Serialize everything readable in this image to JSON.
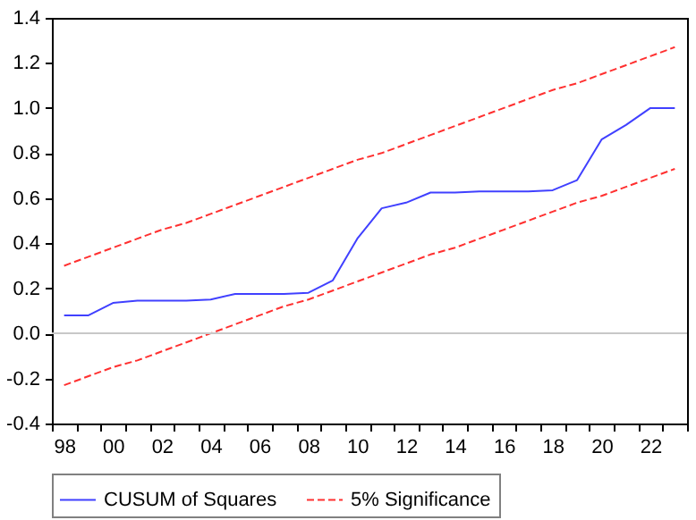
{
  "chart_data": {
    "type": "line",
    "categories": [
      "98",
      null,
      "00",
      null,
      "02",
      null,
      "04",
      null,
      "06",
      null,
      "08",
      null,
      "10",
      null,
      "12",
      null,
      "14",
      null,
      "16",
      null,
      "18",
      null,
      "20",
      null,
      "22",
      null
    ],
    "series": [
      {
        "name": "CUSUM of Squares",
        "color": "#4040ff",
        "line_style": "solid",
        "values": [
          0.08,
          0.08,
          0.135,
          0.145,
          0.145,
          0.145,
          0.15,
          0.175,
          0.175,
          0.175,
          0.18,
          0.235,
          0.42,
          0.555,
          0.58,
          0.625,
          0.625,
          0.63,
          0.63,
          0.63,
          0.635,
          0.68,
          0.86,
          0.925,
          1.0,
          1.0
        ]
      },
      {
        "name": "5% Significance",
        "color": "#ff3030",
        "line_style": "dashed",
        "values": [
          0.3,
          0.34,
          0.38,
          0.42,
          0.46,
          0.49,
          0.53,
          0.57,
          0.61,
          0.65,
          0.69,
          0.73,
          0.77,
          0.8,
          0.84,
          0.88,
          0.92,
          0.96,
          1.0,
          1.04,
          1.08,
          1.11,
          1.15,
          1.19,
          1.23,
          1.27
        ]
      },
      {
        "color": "#ff3030",
        "line_style": "dashed",
        "values": [
          -0.23,
          -0.19,
          -0.15,
          -0.12,
          -0.08,
          -0.04,
          0.0,
          0.04,
          0.08,
          0.12,
          0.15,
          0.19,
          0.23,
          0.27,
          0.31,
          0.35,
          0.38,
          0.42,
          0.46,
          0.5,
          0.54,
          0.58,
          0.61,
          0.65,
          0.69,
          0.73
        ]
      }
    ],
    "ylim": [
      -0.4,
      1.4
    ],
    "yticks": [
      -0.4,
      -0.2,
      {
        "value": 0,
        "label": "0.0"
      },
      0.2,
      0.4,
      0.6,
      0.8,
      {
        "value": 1,
        "label": "1.0"
      },
      1.2,
      1.4
    ],
    "ref_lines": [
      {
        "axis": "y",
        "value": 0,
        "color": "#c8c8c8"
      }
    ],
    "grid": false,
    "legend": "bottom",
    "marker": "none"
  }
}
